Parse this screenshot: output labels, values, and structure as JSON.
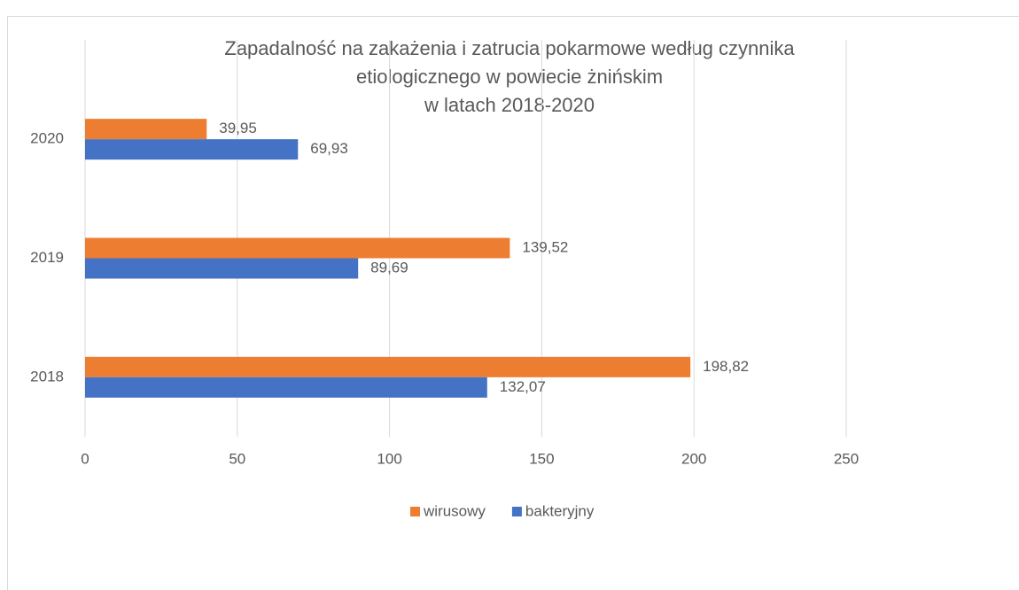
{
  "chart_data": {
    "type": "hbar",
    "title": [
      "Zapadalność na zakażenia i zatrucia pokarmowe według czynnika",
      "etiologicznego w powiecie żnińskim",
      "w latach 2018-2020"
    ],
    "categories": [
      "2018",
      "2019",
      "2020"
    ],
    "series": [
      {
        "name": "wirusowy",
        "color": "#ed7d31",
        "values": [
          198.82,
          139.52,
          39.95
        ],
        "value_labels": [
          "198,82",
          "139,52",
          "39,95"
        ]
      },
      {
        "name": "bakteryjny",
        "color": "#4472c4",
        "values": [
          132.07,
          89.69,
          69.93
        ],
        "value_labels": [
          "132,07",
          "89,69",
          "69,93"
        ]
      }
    ],
    "xlim": [
      0,
      250
    ],
    "xticks": [
      0,
      50,
      100,
      150,
      200,
      250
    ],
    "grid": true,
    "legend": "bottom"
  }
}
